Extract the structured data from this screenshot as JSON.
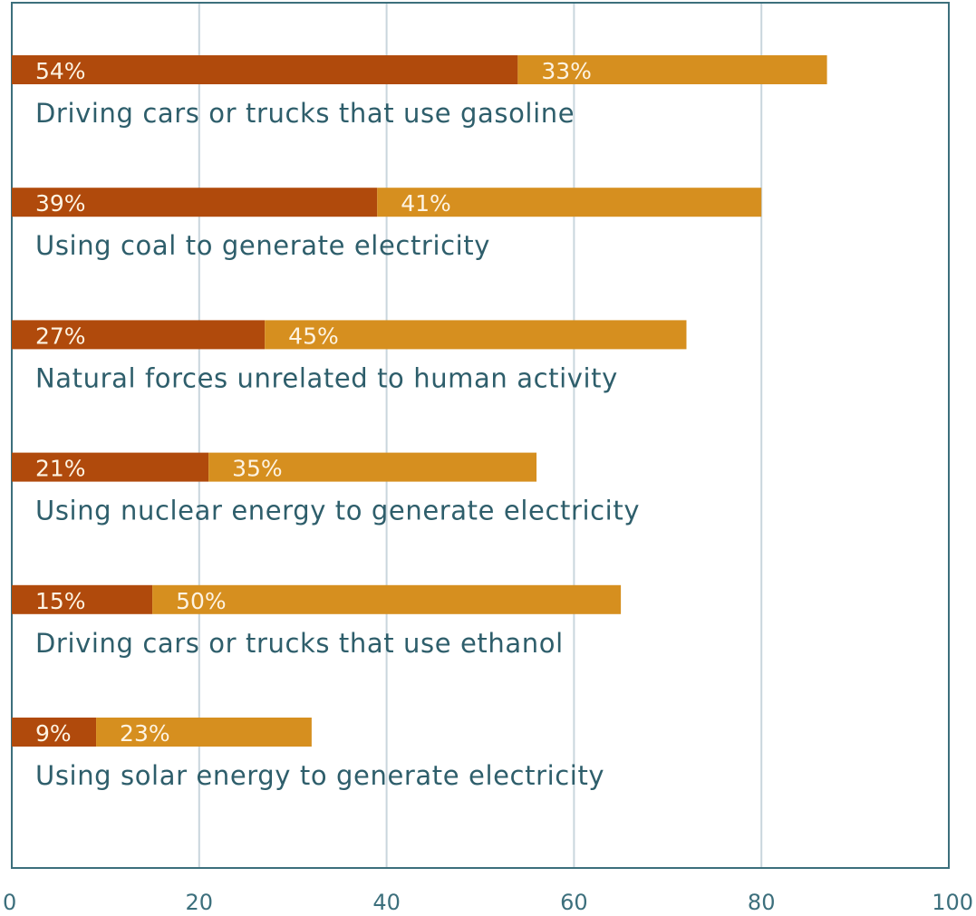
{
  "chart_data": {
    "type": "bar",
    "orientation": "horizontal",
    "stacked": true,
    "grid": true,
    "xlim": [
      0,
      100
    ],
    "x_ticks": [
      "0",
      "20",
      "40",
      "60",
      "80",
      "100"
    ],
    "colors": {
      "series_1": "#b04a0c",
      "series_2": "#d68f1f",
      "grid": "#c9d6dd",
      "axis": "#3c6f7c",
      "label": "#2e5e6b"
    },
    "categories": [
      "Driving cars or trucks that use gasoline",
      "Using coal to generate electricity",
      "Natural forces unrelated to human activity",
      "Using nuclear energy to generate electricity",
      "Driving cars or trucks that use ethanol",
      "Using solar energy to generate electricity"
    ],
    "series": [
      {
        "values": [
          54,
          39,
          27,
          21,
          15,
          9
        ],
        "labels": [
          "54%",
          "39%",
          "27%",
          "21%",
          "15%",
          "9%"
        ]
      },
      {
        "values": [
          33,
          41,
          45,
          35,
          50,
          23
        ],
        "labels": [
          "33%",
          "41%",
          "45%",
          "35%",
          "50%",
          "23%"
        ]
      }
    ]
  }
}
